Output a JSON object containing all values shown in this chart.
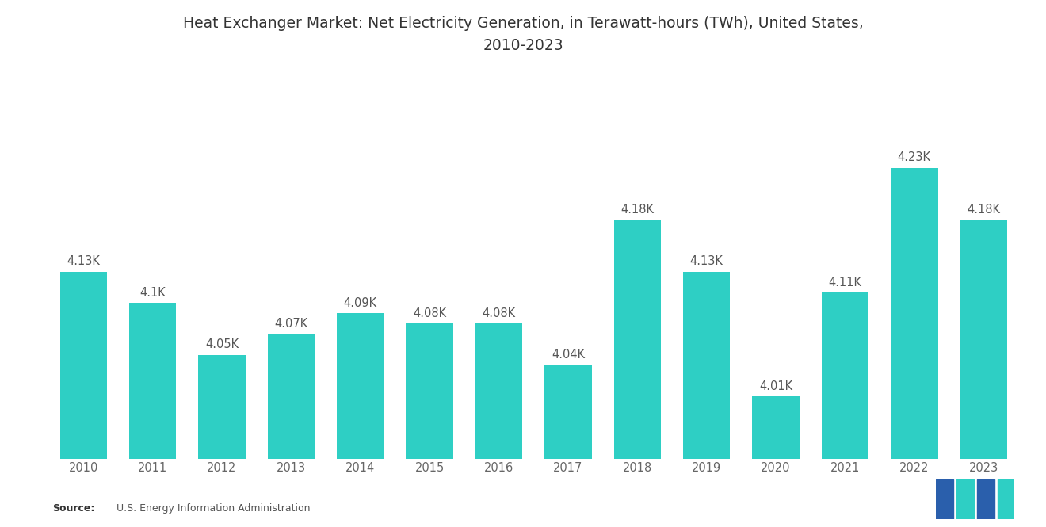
{
  "title": "Heat Exchanger Market: Net Electricity Generation, in Terawatt-hours (TWh), United States,\n2010-2023",
  "years": [
    2010,
    2011,
    2012,
    2013,
    2014,
    2015,
    2016,
    2017,
    2018,
    2019,
    2020,
    2021,
    2022,
    2023
  ],
  "values": [
    4130,
    4100,
    4050,
    4070,
    4090,
    4080,
    4080,
    4040,
    4180,
    4130,
    4010,
    4110,
    4230,
    4180
  ],
  "labels": [
    "4.13K",
    "4.1K",
    "4.05K",
    "4.07K",
    "4.09K",
    "4.08K",
    "4.08K",
    "4.04K",
    "4.18K",
    "4.13K",
    "4.01K",
    "4.11K",
    "4.23K",
    "4.18K"
  ],
  "bar_color": "#2ECFC4",
  "background_color": "#FFFFFF",
  "title_fontsize": 13.5,
  "label_fontsize": 10.5,
  "tick_fontsize": 10.5,
  "source_bold": "Source:",
  "source_rest": "  U.S. Energy Information Administration",
  "ylim_min": 3950,
  "ylim_max": 4290,
  "logo_blue": "#2A5FAC",
  "logo_teal": "#2ECFC4"
}
